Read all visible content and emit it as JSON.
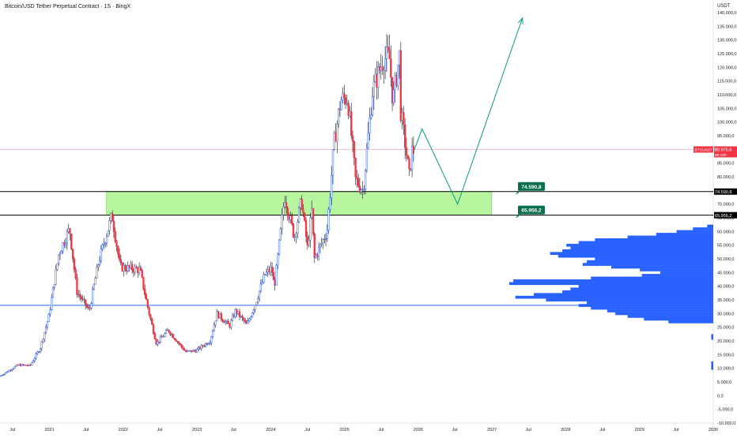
{
  "header": {
    "title": "Bitcoin/USD Tether Perpetual Contract · 1S · BingX",
    "unit": "USDT"
  },
  "colors": {
    "bull": "#2962ff",
    "bear": "#f23645",
    "wick": "#131722",
    "zone_fill": "#b7f59e",
    "zone_line": "#000000",
    "projection": "#089981",
    "label_fill": "#0b6e4f",
    "poc_line": "#2962ff",
    "volume_profile": "#2962ff",
    "price_line": "#f7a1a7",
    "price_badge": "#f23645"
  },
  "chart_data": {
    "type": "candlestick",
    "title": "Bitcoin/USD Tether Perpetual Contract · 1S · BingX",
    "y_unit": "USDT",
    "ylim": [
      -10000,
      140000
    ],
    "y_ticks": [
      -10000,
      -5000,
      0,
      5000,
      10000,
      15000,
      20000,
      25000,
      30000,
      35000,
      40000,
      45000,
      50000,
      55000,
      60000,
      65000,
      70000,
      75000,
      80000,
      85000,
      90000,
      95000,
      100000,
      105000,
      110000,
      115000,
      120000,
      125000,
      130000,
      135000,
      140000
    ],
    "y_tick_labels": [
      "-10.000,0",
      "-5.000,0",
      "0,0",
      "5.000,0",
      "10.000,0",
      "15.000,0",
      "20.000,0",
      "25.000,0",
      "30.000,0",
      "35.000,0",
      "40.000,0",
      "45.000,0",
      "50.000,0",
      "55.000,0",
      "60.000,0",
      "65.000,0",
      "70.000,0",
      "75.000,0",
      "80.000,0",
      "85.000,0",
      "90.000,0",
      "95.000,0",
      "100.000,0",
      "105.000,0",
      "110.000,0",
      "115.000,0",
      "120.000,0",
      "125.000,0",
      "130.000,0",
      "135.000,0",
      "140.000,0"
    ],
    "xlim": [
      "2020-05-01",
      "2030-01-01"
    ],
    "x_ticks": [
      {
        "date": "2020-07-01",
        "label": "Jul"
      },
      {
        "date": "2021-01-01",
        "label": "2021"
      },
      {
        "date": "2021-07-01",
        "label": "Jul"
      },
      {
        "date": "2022-01-01",
        "label": "2022"
      },
      {
        "date": "2022-07-01",
        "label": "Jul"
      },
      {
        "date": "2023-01-01",
        "label": "2023"
      },
      {
        "date": "2023-07-01",
        "label": "Jul"
      },
      {
        "date": "2024-01-01",
        "label": "2024"
      },
      {
        "date": "2024-07-01",
        "label": "Jul"
      },
      {
        "date": "2025-01-01",
        "label": "2025"
      },
      {
        "date": "2025-07-01",
        "label": "Jul"
      },
      {
        "date": "2026-01-01",
        "label": "2026"
      },
      {
        "date": "2026-07-01",
        "label": "Jul"
      },
      {
        "date": "2027-01-01",
        "label": "2027"
      },
      {
        "date": "2027-07-01",
        "label": "Jul"
      },
      {
        "date": "2028-01-01",
        "label": "2028"
      },
      {
        "date": "2028-07-01",
        "label": "Jul"
      },
      {
        "date": "2029-01-01",
        "label": "2029"
      },
      {
        "date": "2029-07-01",
        "label": "Jul"
      },
      {
        "date": "2030-01-01",
        "label": "2030"
      }
    ],
    "price_path": [
      [
        "2020-05-01",
        7000
      ],
      [
        "2020-08-01",
        11200
      ],
      [
        "2020-10-01",
        11000
      ],
      [
        "2020-11-20",
        17500
      ],
      [
        "2021-01-01",
        29000
      ],
      [
        "2021-02-20",
        52000
      ],
      [
        "2021-04-14",
        61000
      ],
      [
        "2021-05-20",
        38000
      ],
      [
        "2021-07-20",
        31000
      ],
      [
        "2021-09-05",
        49000
      ],
      [
        "2021-11-10",
        66000
      ],
      [
        "2021-12-20",
        47000
      ],
      [
        "2022-03-28",
        46000
      ],
      [
        "2022-05-10",
        31000
      ],
      [
        "2022-06-18",
        19000
      ],
      [
        "2022-08-15",
        24000
      ],
      [
        "2022-11-10",
        16000
      ],
      [
        "2023-01-01",
        16500
      ],
      [
        "2023-03-10",
        20000
      ],
      [
        "2023-04-14",
        30000
      ],
      [
        "2023-06-15",
        25500
      ],
      [
        "2023-07-15",
        31000
      ],
      [
        "2023-09-10",
        25800
      ],
      [
        "2023-10-25",
        34500
      ],
      [
        "2023-12-05",
        44000
      ],
      [
        "2024-01-10",
        46500
      ],
      [
        "2024-01-23",
        39500
      ],
      [
        "2024-03-14",
        73000
      ],
      [
        "2024-05-01",
        58000
      ],
      [
        "2024-06-05",
        71500
      ],
      [
        "2024-07-05",
        54000
      ],
      [
        "2024-07-29",
        69500
      ],
      [
        "2024-08-05",
        49500
      ],
      [
        "2024-10-10",
        60000
      ],
      [
        "2024-11-13",
        92000
      ],
      [
        "2024-12-17",
        108000
      ],
      [
        "2025-01-20",
        109000
      ],
      [
        "2025-02-28",
        79000
      ],
      [
        "2025-04-07",
        75000
      ],
      [
        "2025-05-22",
        111000
      ],
      [
        "2025-07-14",
        123000
      ],
      [
        "2025-08-14",
        124000
      ],
      [
        "2025-09-01",
        107500
      ],
      [
        "2025-10-06",
        126000
      ],
      [
        "2025-10-10",
        104000
      ],
      [
        "2025-11-21",
        80500
      ],
      [
        "2025-12-05",
        89500
      ]
    ],
    "current_price": {
      "value": 89975.8,
      "label": "89.975,8",
      "ticker": "BTCUSDT.P",
      "countdown": "58:10h"
    },
    "zone": {
      "top": 74590.8,
      "top_label": "74.590,8",
      "bottom": 65956.2,
      "bottom_label": "65.956,2",
      "start": "2021-10-10",
      "end": "2026-12-31"
    },
    "horizontal_line": {
      "value": 33000
    },
    "projection": [
      [
        "2025-12-08",
        89000
      ],
      [
        "2026-01-20",
        97500
      ],
      [
        "2026-07-15",
        70000
      ],
      [
        "2027-06-01",
        138000
      ]
    ],
    "volume_profile": [
      [
        62000,
        0.03
      ],
      [
        61000,
        0.1
      ],
      [
        60000,
        0.18
      ],
      [
        59000,
        0.28
      ],
      [
        58000,
        0.42
      ],
      [
        57000,
        0.58
      ],
      [
        56000,
        0.66
      ],
      [
        55000,
        0.72
      ],
      [
        54000,
        0.7
      ],
      [
        53000,
        0.74
      ],
      [
        52000,
        0.8
      ],
      [
        51000,
        0.76
      ],
      [
        50000,
        0.58
      ],
      [
        49000,
        0.62
      ],
      [
        48000,
        0.64
      ],
      [
        47000,
        0.5
      ],
      [
        46000,
        0.36
      ],
      [
        45000,
        0.26
      ],
      [
        44000,
        0.35
      ],
      [
        43000,
        0.6
      ],
      [
        42000,
        0.98
      ],
      [
        41000,
        1.0
      ],
      [
        40000,
        0.66
      ],
      [
        39000,
        0.7
      ],
      [
        38000,
        0.74
      ],
      [
        37000,
        0.88
      ],
      [
        36000,
        0.97
      ],
      [
        35000,
        0.82
      ],
      [
        34000,
        0.62
      ],
      [
        33000,
        0.66
      ],
      [
        32000,
        0.6
      ],
      [
        31000,
        0.52
      ],
      [
        30000,
        0.48
      ],
      [
        29000,
        0.42
      ],
      [
        28000,
        0.34
      ],
      [
        27000,
        0.22
      ],
      [
        22000,
        0.01
      ],
      [
        21000,
        0.01
      ],
      [
        12000,
        0.01
      ],
      [
        11000,
        0.01
      ],
      [
        10000,
        0.01
      ]
    ]
  }
}
